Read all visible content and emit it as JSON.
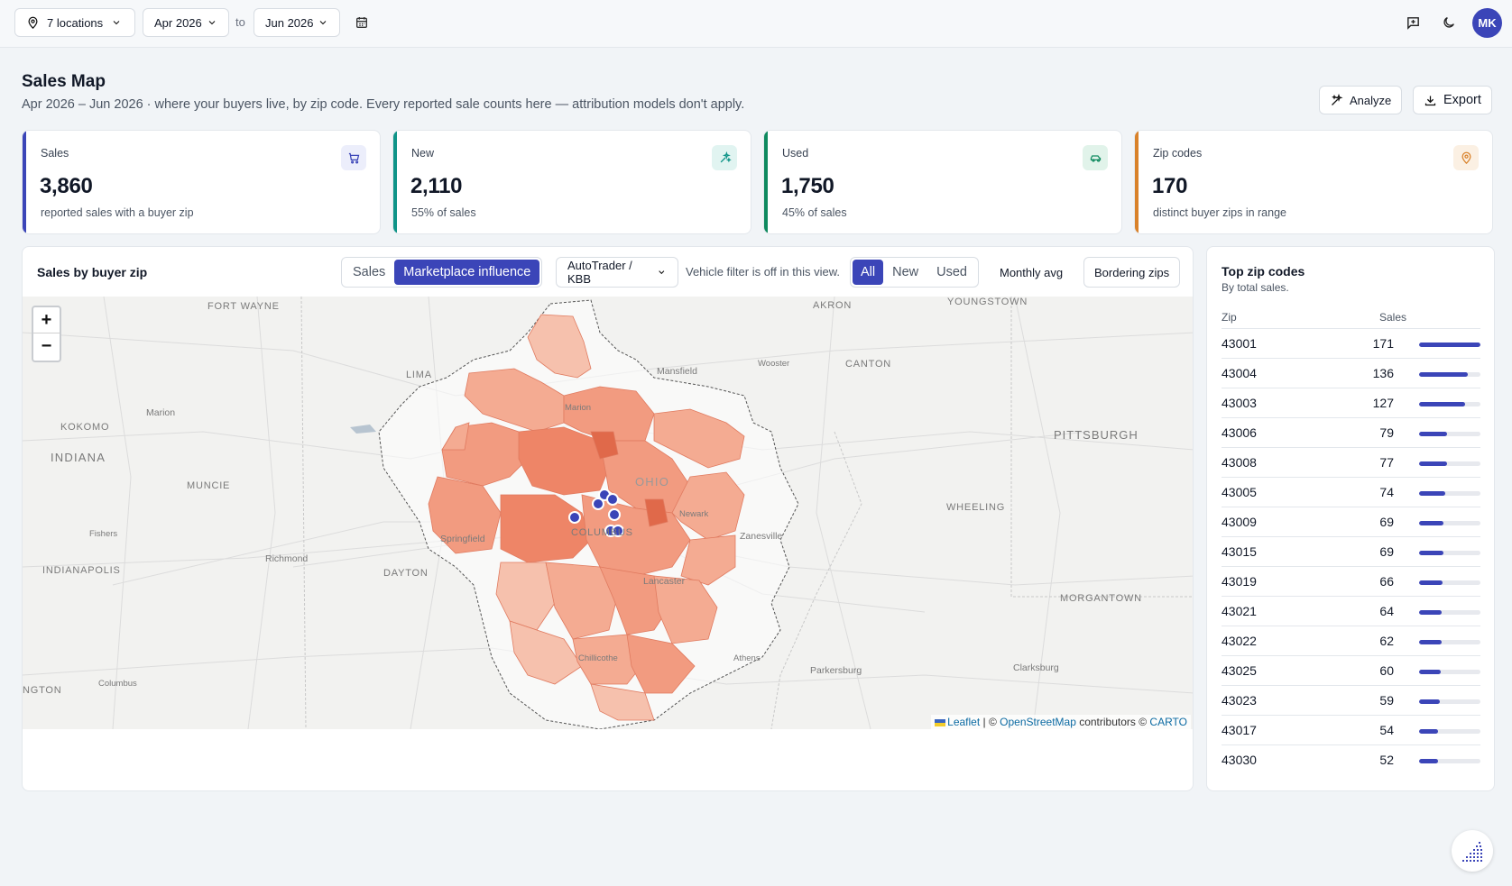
{
  "topbar": {
    "locations": {
      "label": "7 locations",
      "icon": "map-pin-icon"
    },
    "date_from": "Apr 2026",
    "to_label": "to",
    "date_to": "Jun 2026",
    "calendar_icon": "calendar-icon",
    "feedback_icon": "message-plus-icon",
    "theme_icon": "moon-icon",
    "avatar_initials": "MK"
  },
  "header": {
    "title": "Sales Map",
    "subtitle": "Apr 2026 – Jun 2026 · where your buyers live, by zip code. Every reported sale counts here — attribution models don't apply.",
    "analyze_label": "Analyze",
    "export_label": "Export"
  },
  "kpis": [
    {
      "label": "Sales",
      "value": "3,860",
      "sub": "reported sales with a buyer zip",
      "icon": "cart-icon",
      "color": "#3b45b8"
    },
    {
      "label": "New",
      "value": "2,110",
      "sub": "55% of sales",
      "icon": "sparkle-icon",
      "color": "#0f9488"
    },
    {
      "label": "Used",
      "value": "1,750",
      "sub": "45% of sales",
      "icon": "car-icon",
      "color": "#0f8a5f"
    },
    {
      "label": "Zip codes",
      "value": "170",
      "sub": "distinct buyer zips in range",
      "icon": "map-pin-icon",
      "color": "#d9822b"
    }
  ],
  "map_panel": {
    "title": "Sales by buyer zip",
    "view_tabs": [
      "Sales",
      "Marketplace influence"
    ],
    "view_selected": "Marketplace influence",
    "source_select": "AutoTrader / KBB",
    "vehicle_note": "Vehicle filter is off in this view.",
    "vehicle_tabs": [
      "All",
      "New",
      "Used"
    ],
    "vehicle_selected": "All",
    "monthly_avg": "Monthly avg",
    "bordering_zips": "Bordering zips",
    "zoom_in": "+",
    "zoom_out": "−",
    "attribution": {
      "leaflet": "Leaflet",
      "sep1": " | © ",
      "osm": "OpenStreetMap",
      "contrib": " contributors © ",
      "carto": "CARTO"
    },
    "map_labels": [
      {
        "text": "FORT WAYNE",
        "kind": "city"
      },
      {
        "text": "AKRON",
        "kind": "city"
      },
      {
        "text": "YOUNGSTOWN",
        "kind": "city"
      },
      {
        "text": "LIMA",
        "kind": "city"
      },
      {
        "text": "Mansfield",
        "kind": "town"
      },
      {
        "text": "Wooster",
        "kind": "small"
      },
      {
        "text": "CANTON",
        "kind": "city"
      },
      {
        "text": "Marion",
        "kind": "town"
      },
      {
        "text": "Marion",
        "kind": "town"
      },
      {
        "text": "KOKOMO",
        "kind": "city"
      },
      {
        "text": "INDIANA",
        "kind": "state"
      },
      {
        "text": "PITTSBURGH",
        "kind": "bigcity"
      },
      {
        "text": "MUNCIE",
        "kind": "city"
      },
      {
        "text": "OHIO",
        "kind": "state"
      },
      {
        "text": "Newark",
        "kind": "small"
      },
      {
        "text": "WHEELING",
        "kind": "city"
      },
      {
        "text": "Fishers",
        "kind": "small"
      },
      {
        "text": "Springfield",
        "kind": "town"
      },
      {
        "text": "COLUMBUS",
        "kind": "city"
      },
      {
        "text": "Zanesville",
        "kind": "town"
      },
      {
        "text": "INDIANAPOLIS",
        "kind": "city"
      },
      {
        "text": "Richmond",
        "kind": "town"
      },
      {
        "text": "DAYTON",
        "kind": "city"
      },
      {
        "text": "Lancaster",
        "kind": "town"
      },
      {
        "text": "MORGANTOWN",
        "kind": "city"
      },
      {
        "text": "Chillicothe",
        "kind": "small"
      },
      {
        "text": "Athens",
        "kind": "small"
      },
      {
        "text": "Parkersburg",
        "kind": "town"
      },
      {
        "text": "Clarksburg",
        "kind": "town"
      },
      {
        "text": "NGTON",
        "kind": "city"
      },
      {
        "text": "Columbus",
        "kind": "small"
      }
    ]
  },
  "zip_panel": {
    "title": "Top zip codes",
    "subtitle": "By total sales.",
    "col_zip": "Zip",
    "col_sales": "Sales",
    "rows": [
      {
        "zip": "43001",
        "sales": 171,
        "share": 1.0
      },
      {
        "zip": "43004",
        "sales": 136,
        "share": 0.795
      },
      {
        "zip": "43003",
        "sales": 127,
        "share": 0.743
      },
      {
        "zip": "43006",
        "sales": 79,
        "share": 0.462
      },
      {
        "zip": "43008",
        "sales": 77,
        "share": 0.45
      },
      {
        "zip": "43005",
        "sales": 74,
        "share": 0.433
      },
      {
        "zip": "43009",
        "sales": 69,
        "share": 0.404
      },
      {
        "zip": "43015",
        "sales": 69,
        "share": 0.404
      },
      {
        "zip": "43019",
        "sales": 66,
        "share": 0.386
      },
      {
        "zip": "43021",
        "sales": 64,
        "share": 0.374
      },
      {
        "zip": "43022",
        "sales": 62,
        "share": 0.363
      },
      {
        "zip": "43025",
        "sales": 60,
        "share": 0.351
      },
      {
        "zip": "43023",
        "sales": 59,
        "share": 0.345
      },
      {
        "zip": "43017",
        "sales": 54,
        "share": 0.316
      },
      {
        "zip": "43030",
        "sales": 52,
        "share": 0.304
      }
    ]
  },
  "fab_icon": "dotted-chart-icon"
}
